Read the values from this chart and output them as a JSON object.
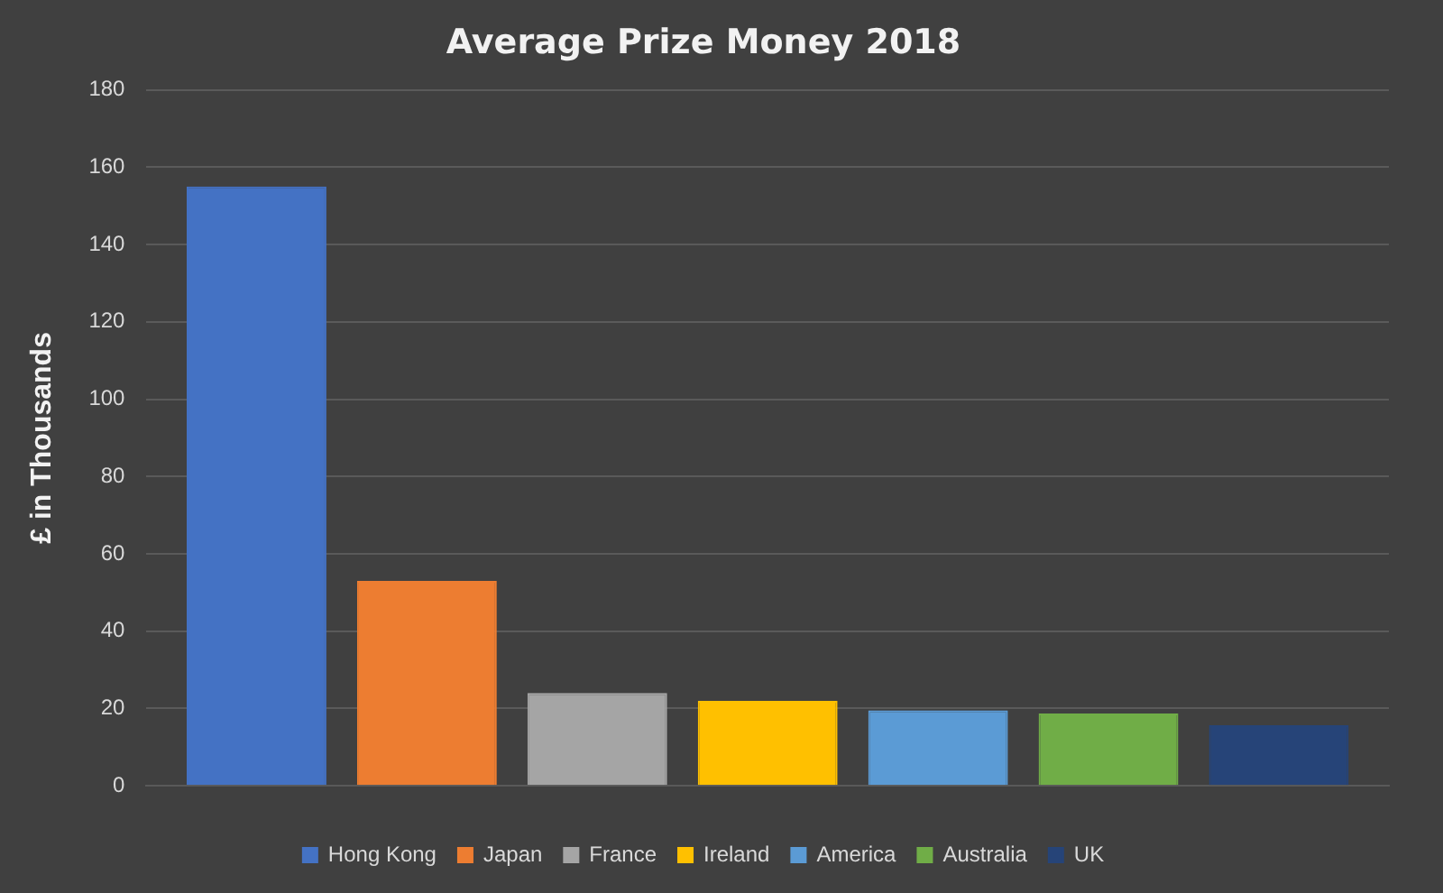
{
  "chart_data": {
    "type": "bar",
    "title": "Average Prize Money 2018",
    "ylabel": "£ in Thousands",
    "categories": [
      null
    ],
    "series": [
      {
        "name": "Hong Kong",
        "color": "#4472c4",
        "values": [
          155
        ]
      },
      {
        "name": "Japan",
        "color": "#ed7d31",
        "values": [
          53
        ]
      },
      {
        "name": "France",
        "color": "#a5a5a5",
        "values": [
          24
        ]
      },
      {
        "name": "Ireland",
        "color": "#ffc000",
        "values": [
          22
        ]
      },
      {
        "name": "America",
        "color": "#5b9bd5",
        "values": [
          19.5
        ]
      },
      {
        "name": "Australia",
        "color": "#70ad47",
        "values": [
          18.7
        ]
      },
      {
        "name": "UK",
        "color": "#264478",
        "values": [
          15.7
        ]
      }
    ],
    "ylim": [
      0,
      180
    ],
    "yticks": [
      0,
      20,
      40,
      60,
      80,
      100,
      120,
      140,
      160,
      180
    ],
    "grid": "y",
    "legend": "bottom"
  }
}
